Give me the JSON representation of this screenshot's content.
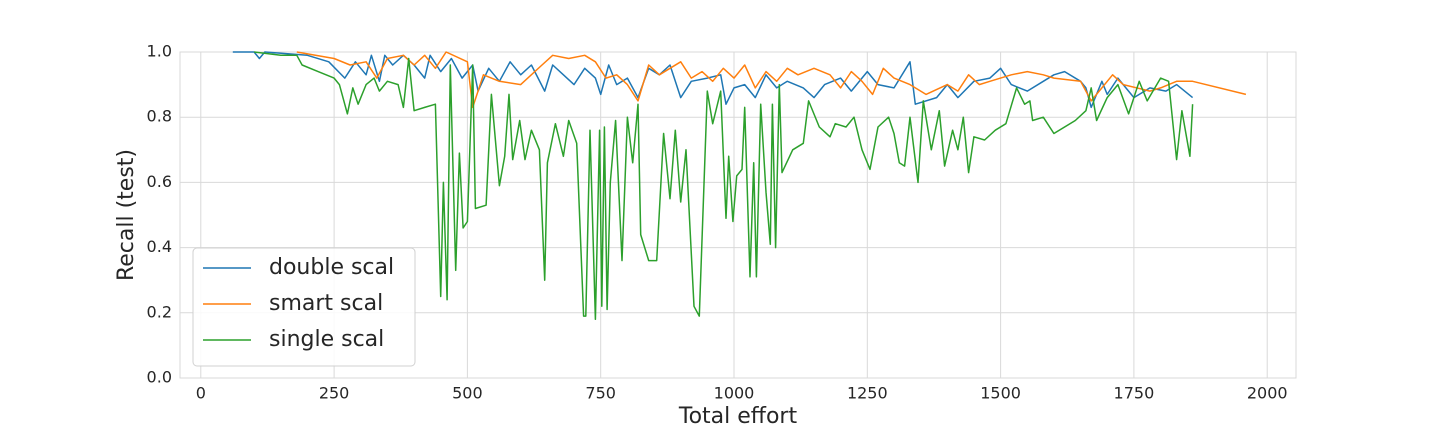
{
  "chart_data": {
    "type": "line",
    "xlabel": "Total effort",
    "ylabel": "Recall (test)",
    "xlim": [
      -39,
      2054
    ],
    "ylim": [
      0,
      1
    ],
    "xticks": [
      0,
      250,
      500,
      750,
      1000,
      1250,
      1500,
      1750,
      2000
    ],
    "yticks": [
      {
        "value": 0,
        "label": "0.0"
      },
      {
        "value": 0.2,
        "label": "0.2"
      },
      {
        "value": 0.4,
        "label": "0.4"
      },
      {
        "value": 0.6,
        "label": "0.6"
      },
      {
        "value": 0.8,
        "label": "0.8"
      },
      {
        "value": 1,
        "label": "1.0"
      }
    ],
    "grid": true,
    "legend": "lower left",
    "series": [
      {
        "name": "double scal",
        "color": "#1f77b4",
        "x": [
          60,
          100,
          110,
          120,
          200,
          240,
          270,
          290,
          310,
          320,
          335,
          345,
          360,
          380,
          400,
          420,
          430,
          450,
          470,
          490,
          510,
          520,
          540,
          560,
          580,
          600,
          620,
          645,
          660,
          680,
          700,
          720,
          740,
          750,
          765,
          780,
          800,
          820,
          840,
          860,
          880,
          900,
          920,
          950,
          975,
          985,
          1000,
          1020,
          1040,
          1060,
          1080,
          1100,
          1130,
          1150,
          1170,
          1200,
          1220,
          1250,
          1270,
          1300,
          1330,
          1340,
          1380,
          1400,
          1420,
          1450,
          1480,
          1500,
          1520,
          1550,
          1580,
          1600,
          1620,
          1650,
          1660,
          1670,
          1690,
          1700,
          1720,
          1750,
          1780,
          1810,
          1830,
          1860
        ],
        "values": [
          1.0,
          1.0,
          0.98,
          1.0,
          0.99,
          0.97,
          0.92,
          0.97,
          0.93,
          0.99,
          0.91,
          0.99,
          0.96,
          0.99,
          0.96,
          0.92,
          0.99,
          0.94,
          0.98,
          0.92,
          0.96,
          0.88,
          0.95,
          0.91,
          0.97,
          0.93,
          0.96,
          0.88,
          0.96,
          0.93,
          0.9,
          0.95,
          0.92,
          0.87,
          0.96,
          0.9,
          0.92,
          0.86,
          0.95,
          0.93,
          0.96,
          0.86,
          0.91,
          0.92,
          0.93,
          0.84,
          0.89,
          0.9,
          0.86,
          0.93,
          0.89,
          0.91,
          0.89,
          0.86,
          0.9,
          0.92,
          0.88,
          0.94,
          0.9,
          0.89,
          0.97,
          0.84,
          0.86,
          0.9,
          0.86,
          0.91,
          0.92,
          0.95,
          0.9,
          0.88,
          0.91,
          0.93,
          0.94,
          0.91,
          0.89,
          0.83,
          0.91,
          0.87,
          0.92,
          0.86,
          0.89,
          0.88,
          0.9,
          0.86
        ]
      },
      {
        "name": "smart scal",
        "color": "#ff7f0e",
        "x": [
          180,
          250,
          280,
          310,
          330,
          350,
          380,
          400,
          420,
          440,
          460,
          500,
          510,
          530,
          560,
          600,
          640,
          660,
          690,
          720,
          740,
          760,
          780,
          800,
          820,
          840,
          860,
          880,
          900,
          920,
          940,
          960,
          980,
          1000,
          1020,
          1040,
          1060,
          1080,
          1100,
          1120,
          1150,
          1180,
          1200,
          1220,
          1240,
          1260,
          1280,
          1300,
          1330,
          1360,
          1400,
          1420,
          1440,
          1460,
          1480,
          1520,
          1550,
          1580,
          1600,
          1650,
          1670,
          1710,
          1730,
          1780,
          1800,
          1830,
          1860,
          1960
        ],
        "values": [
          1.0,
          0.98,
          0.96,
          0.97,
          0.92,
          0.98,
          0.99,
          0.96,
          0.99,
          0.95,
          1.0,
          0.97,
          0.83,
          0.93,
          0.91,
          0.9,
          0.96,
          0.99,
          0.98,
          0.99,
          0.97,
          0.92,
          0.93,
          0.9,
          0.85,
          0.96,
          0.93,
          0.95,
          0.97,
          0.92,
          0.94,
          0.91,
          0.95,
          0.92,
          0.96,
          0.89,
          0.94,
          0.91,
          0.95,
          0.93,
          0.95,
          0.93,
          0.89,
          0.94,
          0.91,
          0.87,
          0.95,
          0.92,
          0.9,
          0.87,
          0.9,
          0.88,
          0.93,
          0.9,
          0.91,
          0.93,
          0.94,
          0.93,
          0.92,
          0.91,
          0.85,
          0.93,
          0.9,
          0.88,
          0.89,
          0.91,
          0.91,
          0.87
        ]
      },
      {
        "name": "single scal",
        "color": "#2ca02c",
        "x": [
          100,
          150,
          180,
          190,
          220,
          250,
          260,
          275,
          285,
          295,
          310,
          325,
          335,
          350,
          370,
          380,
          390,
          400,
          420,
          440,
          450,
          455,
          462,
          468,
          478,
          485,
          492,
          500,
          510,
          515,
          535,
          545,
          560,
          570,
          578,
          585,
          598,
          608,
          620,
          635,
          645,
          650,
          665,
          680,
          690,
          705,
          718,
          722,
          730,
          740,
          748,
          752,
          757,
          762,
          768,
          778,
          790,
          800,
          810,
          820,
          825,
          840,
          855,
          868,
          880,
          890,
          900,
          910,
          925,
          935,
          950,
          960,
          975,
          985,
          990,
          998,
          1005,
          1015,
          1020,
          1030,
          1037,
          1042,
          1050,
          1060,
          1068,
          1072,
          1078,
          1085,
          1090,
          1110,
          1130,
          1140,
          1160,
          1180,
          1190,
          1210,
          1225,
          1240,
          1255,
          1270,
          1290,
          1300,
          1310,
          1320,
          1330,
          1345,
          1355,
          1370,
          1385,
          1395,
          1410,
          1420,
          1430,
          1440,
          1450,
          1470,
          1490,
          1510,
          1530,
          1545,
          1555,
          1560,
          1580,
          1600,
          1640,
          1660,
          1670,
          1680,
          1700,
          1720,
          1740,
          1760,
          1775,
          1800,
          1815,
          1830,
          1840,
          1855,
          1860
        ],
        "values": [
          1.0,
          0.99,
          0.99,
          0.96,
          0.94,
          0.92,
          0.9,
          0.81,
          0.89,
          0.84,
          0.9,
          0.92,
          0.88,
          0.91,
          0.9,
          0.83,
          0.98,
          0.82,
          0.83,
          0.84,
          0.25,
          0.6,
          0.24,
          0.96,
          0.33,
          0.69,
          0.46,
          0.48,
          0.96,
          0.52,
          0.53,
          0.87,
          0.59,
          0.68,
          0.87,
          0.67,
          0.79,
          0.67,
          0.76,
          0.7,
          0.3,
          0.66,
          0.78,
          0.68,
          0.79,
          0.72,
          0.19,
          0.19,
          0.76,
          0.18,
          0.76,
          0.22,
          0.77,
          0.21,
          0.6,
          0.79,
          0.36,
          0.8,
          0.66,
          0.84,
          0.44,
          0.36,
          0.36,
          0.75,
          0.55,
          0.76,
          0.54,
          0.7,
          0.22,
          0.19,
          0.88,
          0.78,
          0.88,
          0.49,
          0.68,
          0.48,
          0.62,
          0.64,
          0.83,
          0.31,
          0.66,
          0.31,
          0.84,
          0.57,
          0.41,
          0.84,
          0.4,
          0.9,
          0.63,
          0.7,
          0.72,
          0.85,
          0.77,
          0.74,
          0.78,
          0.77,
          0.8,
          0.7,
          0.64,
          0.77,
          0.8,
          0.75,
          0.66,
          0.65,
          0.8,
          0.6,
          0.85,
          0.7,
          0.82,
          0.65,
          0.76,
          0.7,
          0.8,
          0.63,
          0.74,
          0.73,
          0.76,
          0.78,
          0.89,
          0.84,
          0.85,
          0.79,
          0.8,
          0.75,
          0.79,
          0.82,
          0.89,
          0.79,
          0.86,
          0.9,
          0.81,
          0.91,
          0.85,
          0.92,
          0.91,
          0.67,
          0.82,
          0.68,
          0.84
        ]
      }
    ]
  }
}
